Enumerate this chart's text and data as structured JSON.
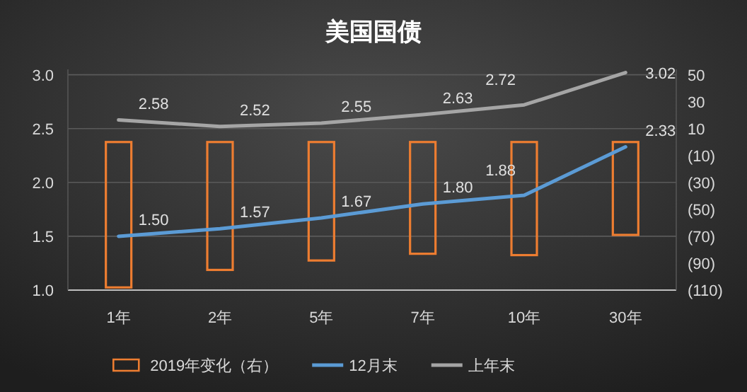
{
  "chart_data": {
    "type": "line",
    "title": "美国国债",
    "categories": [
      "1年",
      "2年",
      "5年",
      "7年",
      "10年",
      "30年"
    ],
    "series": [
      {
        "name": "2019年变化（右）",
        "type": "bar",
        "axis": "y2",
        "color": "#ed7d31",
        "values": [
          -108,
          -95,
          -88,
          -83,
          -84,
          -69
        ]
      },
      {
        "name": "12月末",
        "color": "#5b9bd5",
        "values": [
          1.5,
          1.57,
          1.67,
          1.8,
          1.88,
          2.33
        ],
        "value_labels": [
          "1.50",
          "1.57",
          "1.67",
          "1.80",
          "1.88",
          "2.33"
        ]
      },
      {
        "name": "上年末",
        "color": "#a5a5a5",
        "values": [
          2.58,
          2.52,
          2.55,
          2.63,
          2.72,
          3.02
        ],
        "value_labels": [
          "2.58",
          "2.52",
          "2.55",
          "2.63",
          "2.72",
          "3.02"
        ]
      }
    ],
    "ylim": [
      1.0,
      3.05
    ],
    "yticks": [
      {
        "value": 1.0,
        "label": "1.0"
      },
      {
        "value": 1.5,
        "label": "1.5"
      },
      {
        "value": 2.0,
        "label": "2.0"
      },
      {
        "value": 2.5,
        "label": "2.5"
      },
      {
        "value": 3.0,
        "label": "3.0"
      }
    ],
    "y2lim": [
      -110,
      54
    ],
    "y2ticks": [
      {
        "value": -110,
        "label": "(110)"
      },
      {
        "value": -90,
        "label": "(90)"
      },
      {
        "value": -70,
        "label": "(70)"
      },
      {
        "value": -50,
        "label": "(50)"
      },
      {
        "value": -30,
        "label": "(30)"
      },
      {
        "value": -10,
        "label": "(10)"
      },
      10,
      30,
      50
    ],
    "grid": "y",
    "legend": "bottom",
    "marker": "none",
    "line_style": "solid"
  }
}
